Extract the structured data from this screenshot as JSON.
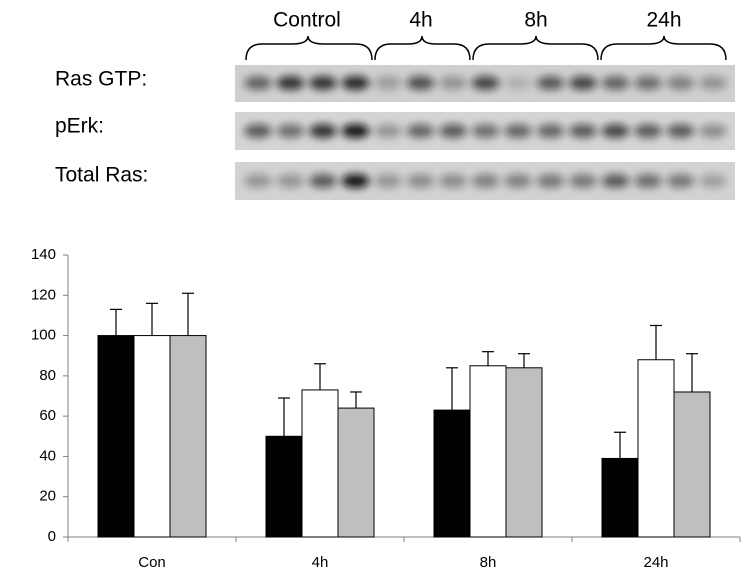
{
  "blot": {
    "groups": [
      "Control",
      "4h",
      "8h",
      "24h"
    ],
    "rows": [
      "Ras GTP:",
      "pErk:",
      "Total Ras:"
    ]
  },
  "chart_data": {
    "type": "bar",
    "categories": [
      "Con",
      "4h",
      "8h",
      "24h"
    ],
    "series": [
      {
        "color": "#000000",
        "values": [
          100,
          50,
          63,
          39
        ],
        "errors": [
          13,
          19,
          21,
          13
        ]
      },
      {
        "color": "#ffffff",
        "values": [
          100,
          73,
          85,
          88
        ],
        "errors": [
          16,
          13,
          7,
          17
        ]
      },
      {
        "color": "#bfbfbf",
        "values": [
          100,
          64,
          84,
          72
        ],
        "errors": [
          21,
          8,
          7,
          19
        ]
      }
    ],
    "ylim": [
      0,
      140
    ],
    "yticks": [
      0,
      20,
      40,
      60,
      80,
      100,
      120,
      140
    ],
    "grid": false
  }
}
